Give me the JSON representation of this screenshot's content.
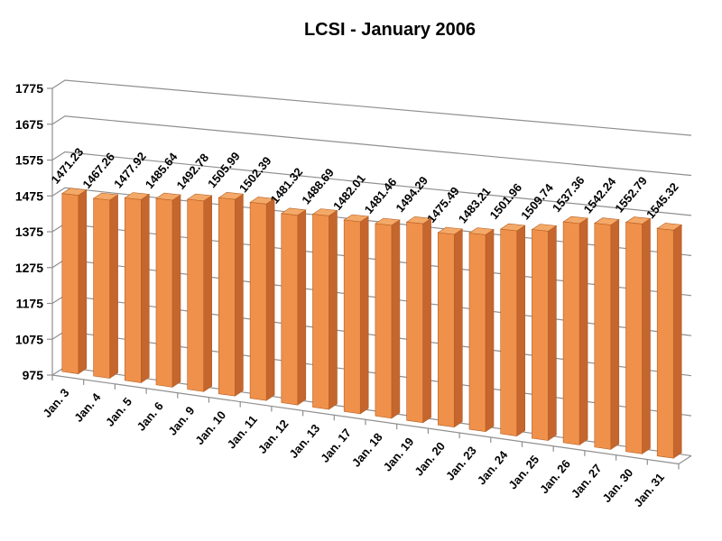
{
  "chart_data": {
    "type": "bar",
    "projection": "3d-perspective",
    "title": "LCSI - January 2006",
    "xlabel": "",
    "ylabel": "",
    "categories": [
      "Jan. 3",
      "Jan. 4",
      "Jan. 5",
      "Jan. 6",
      "Jan. 9",
      "Jan. 10",
      "Jan. 11",
      "Jan. 12",
      "Jan. 13",
      "Jan. 17",
      "Jan. 18",
      "Jan. 19",
      "Jan. 20",
      "Jan. 23",
      "Jan. 24",
      "Jan. 25",
      "Jan. 26",
      "Jan. 27",
      "Jan. 30",
      "Jan. 31"
    ],
    "values": [
      1471.23,
      1467.26,
      1477.92,
      1485.64,
      1492.78,
      1505.99,
      1502.39,
      1481.32,
      1488.69,
      1482.01,
      1481.46,
      1494.29,
      1475.49,
      1483.21,
      1501.96,
      1509.74,
      1537.36,
      1542.24,
      1552.79,
      1545.32
    ],
    "value_labels": [
      "1471.23",
      "1467.26",
      "1477.92",
      "1485.64",
      "1492.78",
      "1505.99",
      "1502.39",
      "1481.32",
      "1488.69",
      "1482.01",
      "1481.46",
      "1494.29",
      "1475.49",
      "1483.21",
      "1501.96",
      "1509.74",
      "1537.36",
      "1542.24",
      "1552.79",
      "1545.32"
    ],
    "yticks": [
      975,
      1075,
      1175,
      1275,
      1375,
      1475,
      1575,
      1675,
      1775
    ],
    "ylim": [
      975,
      1775
    ],
    "ytick_step": 100,
    "grid": true,
    "legend": "none",
    "series_name": "LCSI",
    "colors": {
      "bar_front": "#F0914B",
      "bar_side": "#C4662E",
      "bar_top": "#F4A968",
      "bar_edge": "#B65E22",
      "gridline": "#8F8F8F",
      "text": "#000000",
      "background": "#FFFFFF"
    }
  }
}
